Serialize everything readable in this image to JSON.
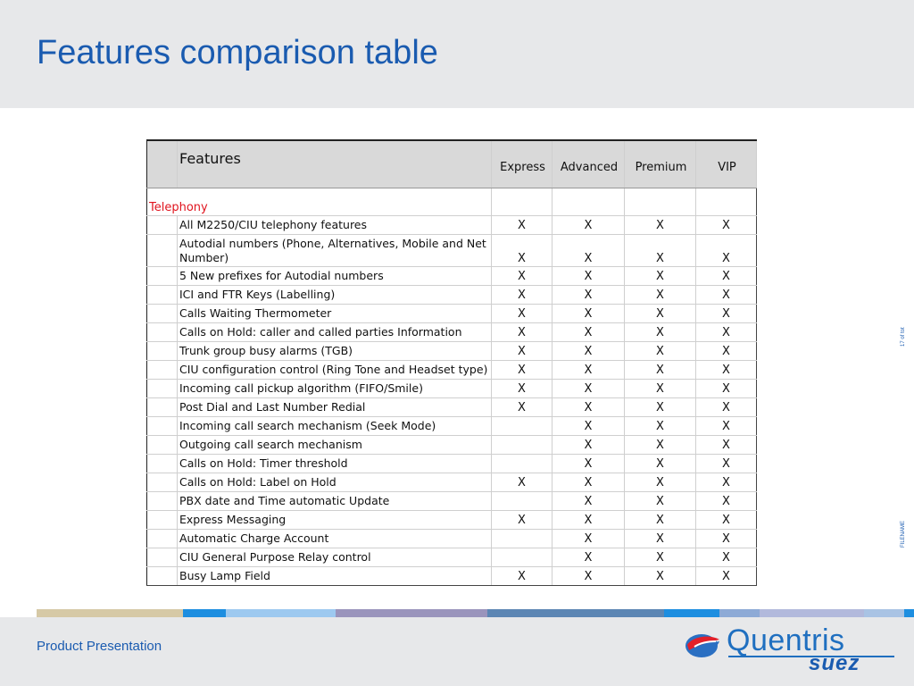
{
  "slide": {
    "title": "Features comparison table",
    "footer": "Product Presentation",
    "page_indicator": "17 of tot",
    "filename": "FILENAME"
  },
  "table": {
    "header": {
      "features": "Features",
      "columns": [
        "Express",
        "Advanced",
        "Premium",
        "VIP"
      ]
    },
    "section": "Telephony",
    "rows": [
      {
        "label": "All M2250/CIU telephony features",
        "cells": [
          "X",
          "X",
          "X",
          "X"
        ]
      },
      {
        "label": "Autodial numbers (Phone, Alternatives, Mobile and Net Number)",
        "cells": [
          "X",
          "X",
          "X",
          "X"
        ]
      },
      {
        "label": "5 New prefixes for Autodial numbers",
        "cells": [
          "X",
          "X",
          "X",
          "X"
        ]
      },
      {
        "label": "ICI and FTR Keys (Labelling)",
        "cells": [
          "X",
          "X",
          "X",
          "X"
        ]
      },
      {
        "label": "Calls Waiting Thermometer",
        "cells": [
          "X",
          "X",
          "X",
          "X"
        ]
      },
      {
        "label": "Calls on Hold: caller and called parties Information",
        "cells": [
          "X",
          "X",
          "X",
          "X"
        ]
      },
      {
        "label": "Trunk group busy alarms (TGB)",
        "cells": [
          "X",
          "X",
          "X",
          "X"
        ]
      },
      {
        "label": "CIU configuration control (Ring Tone and Headset type)",
        "cells": [
          "X",
          "X",
          "X",
          "X"
        ]
      },
      {
        "label": "Incoming call pickup algorithm (FIFO/Smile)",
        "cells": [
          "X",
          "X",
          "X",
          "X"
        ]
      },
      {
        "label": "Post Dial and Last Number Redial",
        "cells": [
          "X",
          "X",
          "X",
          "X"
        ]
      },
      {
        "label": "Incoming call search mechanism (Seek Mode)",
        "cells": [
          "",
          "X",
          "X",
          "X"
        ]
      },
      {
        "label": "Outgoing call search mechanism",
        "cells": [
          "",
          "X",
          "X",
          "X"
        ]
      },
      {
        "label": "Calls on Hold: Timer threshold",
        "cells": [
          "",
          "X",
          "X",
          "X"
        ]
      },
      {
        "label": "Calls on Hold: Label on Hold",
        "cells": [
          "X",
          "X",
          "X",
          "X"
        ]
      },
      {
        "label": "PBX date and Time automatic Update",
        "cells": [
          "",
          "X",
          "X",
          "X"
        ]
      },
      {
        "label": "Express Messaging",
        "cells": [
          "X",
          "X",
          "X",
          "X"
        ]
      },
      {
        "label": "Automatic Charge Account",
        "cells": [
          "",
          "X",
          "X",
          "X"
        ]
      },
      {
        "label": "CIU General Purpose Relay control",
        "cells": [
          "",
          "X",
          "X",
          "X"
        ]
      },
      {
        "label": "Busy Lamp Field",
        "cells": [
          "X",
          "X",
          "X",
          "X"
        ]
      }
    ]
  },
  "stripe_colors": [
    "#d6c9a6",
    "#1d8ee0",
    "#9dc9f0",
    "#9a94bc",
    "#5c86b4",
    "#1d8ee0",
    "#8daad6",
    "#b2b9dc",
    "#a9c3e4",
    "#1d8ee0"
  ],
  "logo": {
    "name": "Quentris",
    "sub": "suez",
    "icon": "quentris-sphere-logo-icon"
  }
}
